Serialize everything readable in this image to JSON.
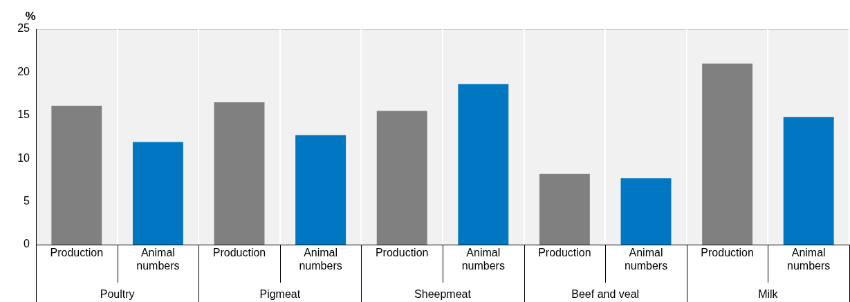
{
  "chart_data": {
    "type": "bar",
    "ylabel": "%",
    "categories": [
      "Production",
      "Animal numbers",
      "Production",
      "Animal numbers",
      "Production",
      "Animal numbers",
      "Production",
      "Animal numbers",
      "Production",
      "Animal numbers"
    ],
    "values": [
      16.1,
      11.9,
      16.5,
      12.7,
      15.5,
      18.6,
      8.2,
      7.7,
      21.0,
      14.8
    ],
    "colors": [
      "#808080",
      "#0077c0",
      "#808080",
      "#0077c0",
      "#808080",
      "#0077c0",
      "#808080",
      "#0077c0",
      "#808080",
      "#0077c0"
    ],
    "annotations": [
      "Poultry",
      "Pigmeat",
      "Sheepmeat",
      "Beef and veal",
      "Milk"
    ],
    "ylim": [
      0,
      25
    ],
    "yticks": [
      0,
      5,
      10,
      15,
      20,
      25
    ],
    "grid": "x",
    "legend": false
  }
}
